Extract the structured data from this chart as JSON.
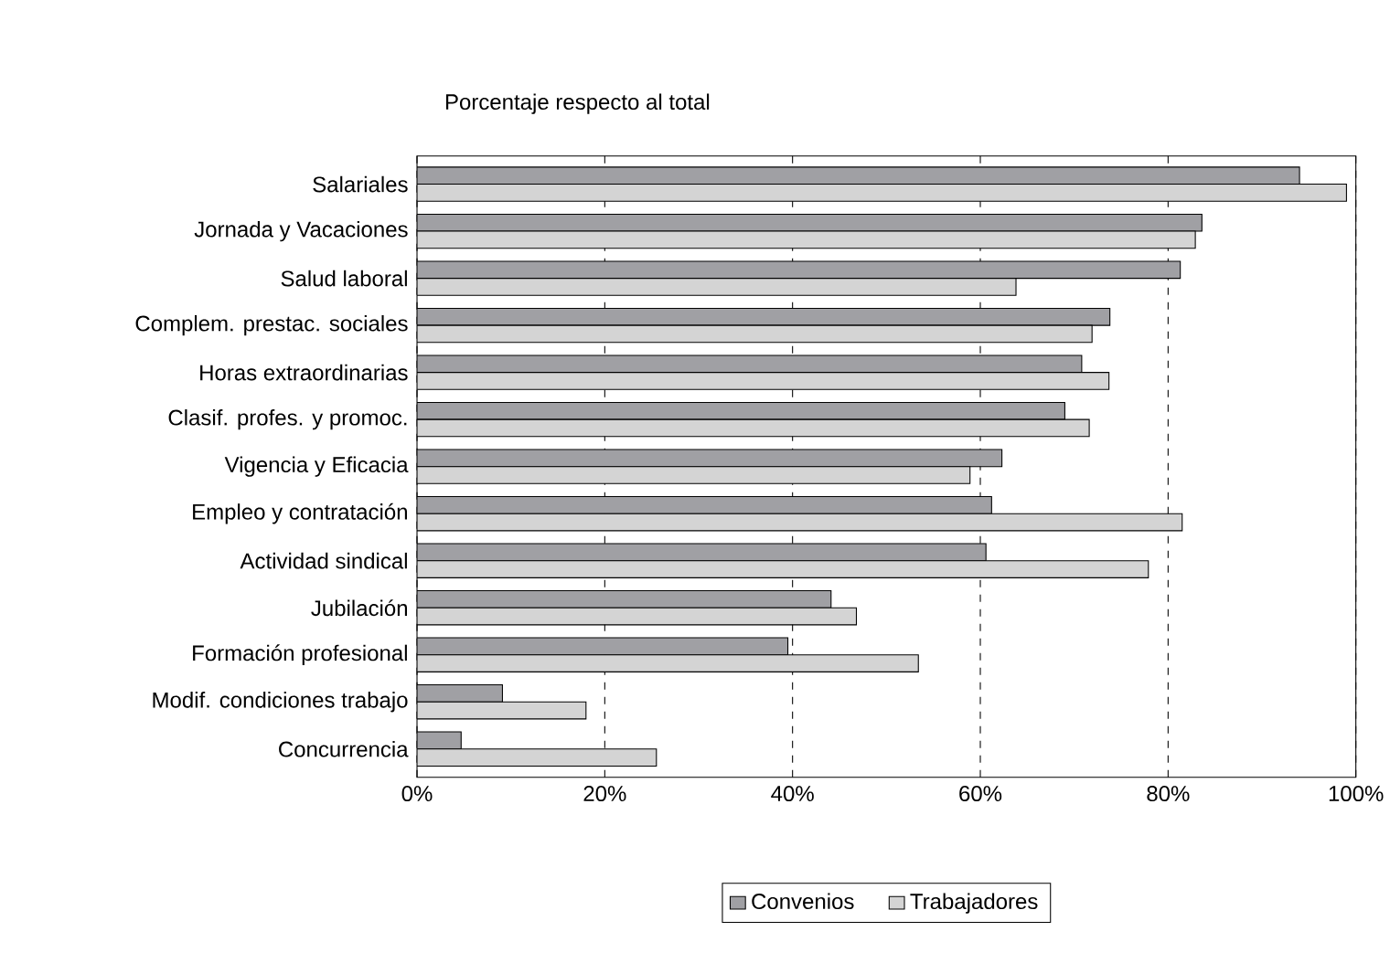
{
  "chart_data": {
    "type": "bar",
    "orientation": "horizontal",
    "title": "Porcentaje respecto al total",
    "categories": [
      "Salariales",
      "Jornada y Vacaciones",
      "Salud laboral",
      "Complem. prestac. sociales",
      "Horas extraordinarias",
      "Clasif. profes. y promoc.",
      "Vigencia y Eficacia",
      "Empleo y contratación",
      "Actividad sindical",
      "Jubilación",
      "Formación profesional",
      "Modif. condiciones trabajo",
      "Concurrencia"
    ],
    "series": [
      {
        "name": "Convenios",
        "color": "#a0a0a4",
        "values": [
          94,
          83.6,
          81.3,
          73.8,
          70.8,
          69,
          62.3,
          61.2,
          60.6,
          44.1,
          39.5,
          9.1,
          4.7
        ]
      },
      {
        "name": "Trabajadores",
        "color": "#d4d4d4",
        "values": [
          99,
          82.9,
          63.8,
          71.9,
          73.7,
          71.6,
          58.9,
          81.5,
          77.9,
          46.8,
          53.4,
          18,
          25.5
        ]
      }
    ],
    "xlim": [
      0,
      100
    ],
    "xticks": [
      {
        "value": 0,
        "label": "0%"
      },
      {
        "value": 20,
        "label": "20%"
      },
      {
        "value": 40,
        "label": "40%"
      },
      {
        "value": 60,
        "label": "60%"
      },
      {
        "value": 80,
        "label": "80%"
      },
      {
        "value": 100,
        "label": "100%"
      }
    ],
    "grid": "x",
    "legend": "bottom"
  }
}
